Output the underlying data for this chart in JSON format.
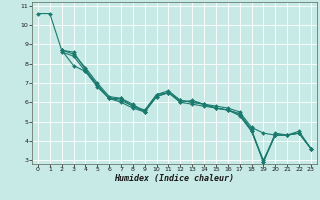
{
  "xlabel": "Humidex (Indice chaleur)",
  "bg_color": "#c8eae6",
  "grid_color": "#ffffff",
  "line_color": "#1a7a6e",
  "xlim": [
    -0.5,
    23.5
  ],
  "ylim": [
    2.8,
    11.2
  ],
  "xticks": [
    0,
    1,
    2,
    3,
    4,
    5,
    6,
    7,
    8,
    9,
    10,
    11,
    12,
    13,
    14,
    15,
    16,
    17,
    18,
    19,
    20,
    21,
    22,
    23
  ],
  "yticks": [
    3,
    4,
    5,
    6,
    7,
    8,
    9,
    10,
    11
  ],
  "lines": [
    {
      "x": [
        0,
        1,
        2,
        3,
        4,
        5,
        6,
        7,
        8,
        9,
        10,
        11,
        12,
        13,
        14,
        15,
        16,
        17,
        18,
        19,
        20,
        21,
        22,
        23
      ],
      "y": [
        10.6,
        10.6,
        8.7,
        8.6,
        7.7,
        6.9,
        6.2,
        6.2,
        5.8,
        5.6,
        6.4,
        6.5,
        6.0,
        6.1,
        5.9,
        5.8,
        5.7,
        5.5,
        4.7,
        4.4,
        4.3,
        4.3,
        4.4,
        3.6
      ]
    },
    {
      "x": [
        2,
        3,
        4,
        5,
        6,
        7,
        8,
        9,
        10,
        11,
        12,
        13,
        14,
        15,
        16,
        17,
        18,
        19,
        20,
        21,
        22,
        23
      ],
      "y": [
        8.7,
        8.5,
        7.8,
        7.0,
        6.3,
        6.2,
        5.9,
        5.5,
        6.3,
        6.5,
        6.1,
        6.0,
        5.9,
        5.7,
        5.6,
        5.4,
        4.6,
        2.9,
        4.4,
        4.3,
        4.4,
        3.6
      ]
    },
    {
      "x": [
        2,
        3,
        4,
        5,
        6,
        7,
        8,
        9,
        10,
        11,
        12,
        13,
        14,
        15,
        16,
        17,
        18,
        19,
        20,
        21,
        22,
        23
      ],
      "y": [
        8.6,
        8.4,
        7.6,
        6.8,
        6.2,
        6.1,
        5.8,
        5.5,
        6.3,
        6.5,
        6.0,
        5.9,
        5.8,
        5.7,
        5.6,
        5.4,
        4.5,
        3.0,
        4.3,
        4.3,
        4.4,
        3.6
      ]
    },
    {
      "x": [
        2,
        3,
        4,
        5,
        6,
        7,
        8,
        9,
        10,
        11,
        12,
        13,
        14,
        15,
        16,
        17,
        18,
        19,
        20,
        21,
        22,
        23
      ],
      "y": [
        8.7,
        7.9,
        7.6,
        6.9,
        6.2,
        6.0,
        5.7,
        5.5,
        6.4,
        6.6,
        6.1,
        6.0,
        5.9,
        5.7,
        5.6,
        5.3,
        4.5,
        2.9,
        4.3,
        4.3,
        4.5,
        3.6
      ]
    }
  ]
}
